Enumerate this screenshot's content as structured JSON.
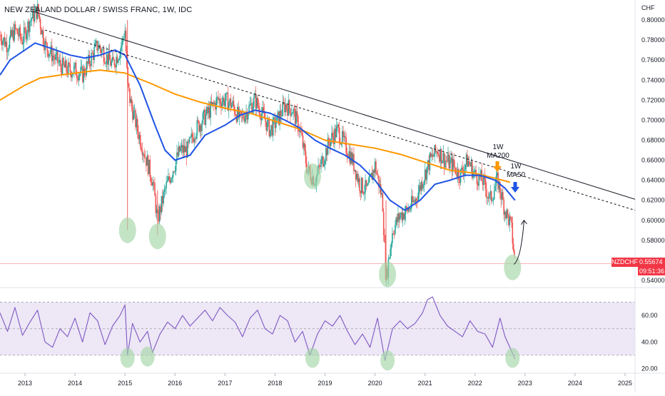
{
  "title": "NEW ZEALAND DOLLAR / SWISS FRANC, 1W, IDC",
  "currency_unit": "CHF",
  "symbol": "NZDCHF",
  "last_price": "0.55674",
  "countdown": "09:51:36",
  "annotations": {
    "ma200": [
      "1W",
      "MA200"
    ],
    "ma50": [
      "1W",
      "MA50"
    ]
  },
  "colors": {
    "ma50": "#1e53e5",
    "ma200": "#ff9800",
    "rsi": "#7e57c2",
    "rsi_band": "#ede7f6",
    "bull": "#26a69a",
    "bear": "#ef5350",
    "circle": "#a5d6a7",
    "trendline": "#131722",
    "price_line": "#f23645",
    "ma200_arrow": "#ff9800",
    "ma50_arrow": "#1e53e5"
  },
  "chart_data": [
    {
      "type": "line",
      "name": "price",
      "x_ticks": [
        "2013",
        "2014",
        "2015",
        "2016",
        "2017",
        "2018",
        "2019",
        "2020",
        "2021",
        "2022",
        "2023",
        "2024",
        "2025"
      ],
      "y_ticks": [
        "0.80000",
        "0.78000",
        "0.76000",
        "0.74000",
        "0.72000",
        "0.70000",
        "0.68000",
        "0.66000",
        "0.64000",
        "0.62000",
        "0.60000",
        "0.58000",
        "0.54000"
      ],
      "ylim": [
        0.535,
        0.81
      ],
      "xlim": [
        2012.5,
        2025.2
      ],
      "price_series": {
        "x": [
          2012.5,
          2012.65,
          2012.8,
          2012.95,
          2013.1,
          2013.25,
          2013.4,
          2013.55,
          2013.7,
          2013.85,
          2014.0,
          2014.15,
          2014.3,
          2014.45,
          2014.6,
          2014.75,
          2014.9,
          2015.0,
          2015.05,
          2015.1,
          2015.25,
          2015.4,
          2015.55,
          2015.65,
          2015.8,
          2015.95,
          2016.1,
          2016.25,
          2016.4,
          2016.55,
          2016.7,
          2016.85,
          2017.0,
          2017.15,
          2017.3,
          2017.45,
          2017.6,
          2017.75,
          2017.9,
          2018.05,
          2018.2,
          2018.35,
          2018.5,
          2018.65,
          2018.8,
          2018.95,
          2019.1,
          2019.25,
          2019.4,
          2019.55,
          2019.7,
          2019.85,
          2020.0,
          2020.15,
          2020.22,
          2020.35,
          2020.5,
          2020.65,
          2020.8,
          2020.95,
          2021.1,
          2021.25,
          2021.4,
          2021.55,
          2021.7,
          2021.85,
          2022.0,
          2022.15,
          2022.3,
          2022.45,
          2022.6,
          2022.72,
          2022.8
        ],
        "y": [
          0.785,
          0.775,
          0.79,
          0.78,
          0.8,
          0.81,
          0.775,
          0.765,
          0.755,
          0.75,
          0.75,
          0.745,
          0.76,
          0.775,
          0.765,
          0.755,
          0.77,
          0.79,
          0.735,
          0.72,
          0.69,
          0.665,
          0.64,
          0.6,
          0.63,
          0.65,
          0.67,
          0.67,
          0.69,
          0.7,
          0.71,
          0.72,
          0.72,
          0.715,
          0.7,
          0.71,
          0.72,
          0.705,
          0.69,
          0.7,
          0.715,
          0.71,
          0.69,
          0.65,
          0.64,
          0.66,
          0.68,
          0.69,
          0.675,
          0.66,
          0.635,
          0.63,
          0.655,
          0.62,
          0.54,
          0.59,
          0.605,
          0.61,
          0.62,
          0.64,
          0.66,
          0.67,
          0.66,
          0.655,
          0.645,
          0.66,
          0.645,
          0.64,
          0.62,
          0.64,
          0.61,
          0.595,
          0.557
        ]
      },
      "ma50": {
        "x": [
          2012.5,
          2012.7,
          2013.0,
          2013.2,
          2013.5,
          2013.9,
          2014.2,
          2014.5,
          2014.8,
          2015.0,
          2015.3,
          2015.6,
          2015.8,
          2016.0,
          2016.3,
          2016.6,
          2017.0,
          2017.3,
          2017.6,
          2017.9,
          2018.2,
          2018.5,
          2018.8,
          2019.1,
          2019.4,
          2019.7,
          2020.0,
          2020.3,
          2020.6,
          2020.9,
          2021.2,
          2021.5,
          2021.8,
          2022.1,
          2022.4,
          2022.6,
          2022.8
        ],
        "y": [
          0.745,
          0.76,
          0.77,
          0.777,
          0.772,
          0.765,
          0.762,
          0.765,
          0.77,
          0.765,
          0.735,
          0.695,
          0.67,
          0.66,
          0.665,
          0.685,
          0.695,
          0.705,
          0.71,
          0.707,
          0.7,
          0.692,
          0.68,
          0.672,
          0.665,
          0.655,
          0.64,
          0.62,
          0.61,
          0.62,
          0.636,
          0.64,
          0.645,
          0.645,
          0.64,
          0.632,
          0.62
        ]
      },
      "ma200": {
        "x": [
          2012.5,
          2013.0,
          2013.3,
          2013.7,
          2014.0,
          2014.5,
          2015.0,
          2015.5,
          2016.0,
          2016.5,
          2017.0,
          2017.5,
          2018.0,
          2018.5,
          2019.0,
          2019.5,
          2020.0,
          2020.5,
          2021.0,
          2021.5,
          2022.0,
          2022.4,
          2022.7
        ],
        "y": [
          0.72,
          0.735,
          0.742,
          0.745,
          0.747,
          0.75,
          0.747,
          0.737,
          0.726,
          0.718,
          0.712,
          0.707,
          0.699,
          0.691,
          0.68,
          0.676,
          0.672,
          0.666,
          0.658,
          0.65,
          0.647,
          0.642,
          0.638
        ]
      },
      "trendlines": [
        {
          "style": "solid",
          "x": [
            2013.2,
            2025.2
          ],
          "y": [
            0.808,
            0.621
          ]
        },
        {
          "style": "dashed",
          "x": [
            2013.4,
            2025.2
          ],
          "y": [
            0.79,
            0.61
          ]
        }
      ],
      "circled_lows": [
        {
          "x": 2015.05,
          "y": 0.59
        },
        {
          "x": 2015.65,
          "y": 0.584
        },
        {
          "x": 2018.75,
          "y": 0.644
        },
        {
          "x": 2020.25,
          "y": 0.546
        },
        {
          "x": 2022.75,
          "y": 0.553
        }
      ],
      "projection_arrow": {
        "from": [
          2022.75,
          0.556
        ],
        "to": [
          2022.98,
          0.6
        ]
      }
    },
    {
      "type": "line",
      "name": "rsi",
      "y_ticks": [
        "60.00",
        "40.00",
        "20.00"
      ],
      "ylim": [
        17,
        80
      ],
      "band": [
        30,
        70
      ],
      "rsi_series": {
        "x": [
          2012.5,
          2012.65,
          2012.8,
          2012.95,
          2013.1,
          2013.25,
          2013.4,
          2013.55,
          2013.7,
          2013.85,
          2014.0,
          2014.15,
          2014.3,
          2014.45,
          2014.6,
          2014.75,
          2014.9,
          2015.0,
          2015.05,
          2015.15,
          2015.3,
          2015.45,
          2015.55,
          2015.7,
          2015.85,
          2016.0,
          2016.15,
          2016.3,
          2016.45,
          2016.6,
          2016.75,
          2016.9,
          2017.05,
          2017.2,
          2017.35,
          2017.5,
          2017.65,
          2017.8,
          2017.95,
          2018.1,
          2018.25,
          2018.4,
          2018.55,
          2018.7,
          2018.85,
          2019.0,
          2019.15,
          2019.3,
          2019.45,
          2019.6,
          2019.75,
          2019.9,
          2020.05,
          2020.2,
          2020.35,
          2020.5,
          2020.65,
          2020.8,
          2020.95,
          2021.05,
          2021.15,
          2021.3,
          2021.45,
          2021.6,
          2021.75,
          2021.9,
          2022.05,
          2022.2,
          2022.35,
          2022.5,
          2022.6,
          2022.72,
          2022.8
        ],
        "y": [
          62,
          48,
          66,
          45,
          55,
          64,
          40,
          36,
          50,
          44,
          58,
          40,
          62,
          56,
          38,
          52,
          60,
          68,
          30,
          54,
          40,
          48,
          32,
          46,
          55,
          50,
          60,
          52,
          58,
          64,
          56,
          66,
          60,
          55,
          44,
          58,
          64,
          50,
          46,
          60,
          56,
          40,
          48,
          30,
          46,
          56,
          52,
          60,
          48,
          38,
          46,
          36,
          58,
          26,
          50,
          56,
          50,
          54,
          62,
          72,
          74,
          60,
          52,
          48,
          44,
          56,
          48,
          46,
          36,
          58,
          44,
          34,
          27
        ]
      },
      "circled_lows": [
        {
          "x": 2015.05,
          "y": 28
        },
        {
          "x": 2015.45,
          "y": 29
        },
        {
          "x": 2018.75,
          "y": 28
        },
        {
          "x": 2020.25,
          "y": 26
        },
        {
          "x": 2022.75,
          "y": 28
        }
      ]
    }
  ]
}
